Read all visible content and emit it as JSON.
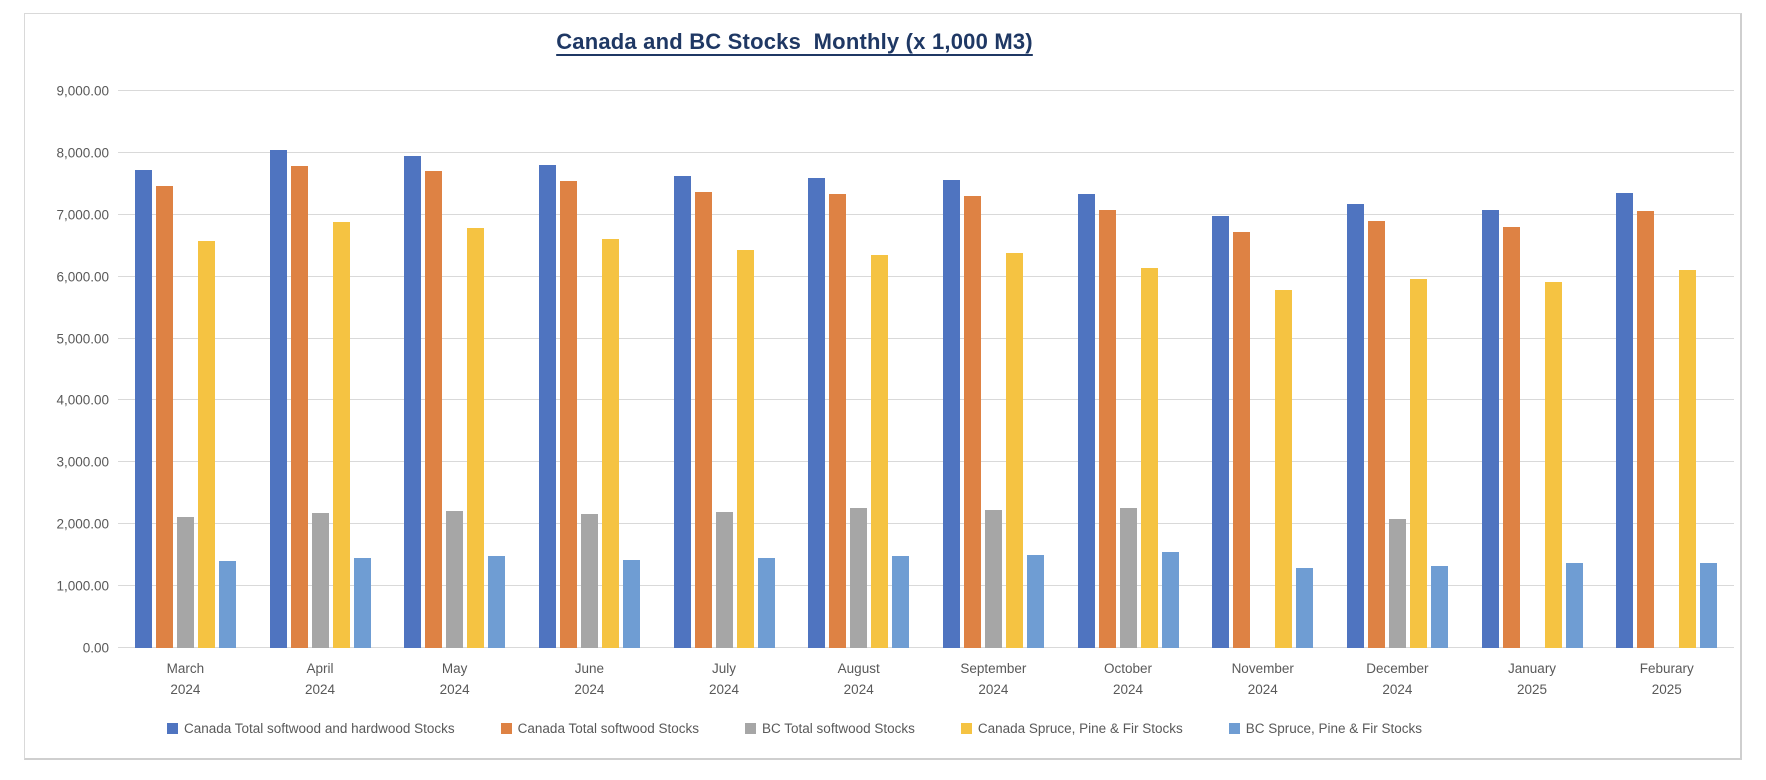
{
  "chart_data": {
    "type": "bar",
    "title": "Canada and BC Stocks  Monthly (x 1,000 M3)",
    "xlabel": "",
    "ylabel": "",
    "ylim": [
      0,
      9000
    ],
    "grid": true,
    "legend_position": "bottom",
    "y_axis": {
      "min": 0,
      "max": 9000,
      "step": 1000,
      "tick_labels": [
        "0.00",
        "1,000.00",
        "2,000.00",
        "3,000.00",
        "4,000.00",
        "5,000.00",
        "6,000.00",
        "7,000.00",
        "8,000.00",
        "9,000.00"
      ]
    },
    "categories": [
      {
        "month": "March",
        "year": "2024"
      },
      {
        "month": "April",
        "year": "2024"
      },
      {
        "month": "May",
        "year": "2024"
      },
      {
        "month": "June",
        "year": "2024"
      },
      {
        "month": "July",
        "year": "2024"
      },
      {
        "month": "August",
        "year": "2024"
      },
      {
        "month": "September",
        "year": "2024"
      },
      {
        "month": "October",
        "year": "2024"
      },
      {
        "month": "November",
        "year": "2024"
      },
      {
        "month": "December",
        "year": "2024"
      },
      {
        "month": "January",
        "year": "2025"
      },
      {
        "month": "Feburary",
        "year": "2025"
      }
    ],
    "series": [
      {
        "key": "canada-total-softwood-and-hardwood",
        "name": "Canada Total softwood and hardwood Stocks",
        "color": "#4F74C0",
        "values": [
          7720,
          8040,
          7950,
          7810,
          7620,
          7590,
          7560,
          7330,
          6980,
          7180,
          7080,
          7350
        ]
      },
      {
        "key": "canada-total-softwood",
        "name": "Canada Total softwood Stocks",
        "color": "#DE8244",
        "values": [
          7460,
          7790,
          7700,
          7540,
          7370,
          7340,
          7300,
          7080,
          6720,
          6900,
          6800,
          7060
        ]
      },
      {
        "key": "bc-total-softwood",
        "name": "BC Total softwood Stocks",
        "color": "#A6A6A6",
        "values": [
          2110,
          2180,
          2220,
          2160,
          2190,
          2260,
          2230,
          2260,
          null,
          2080,
          null,
          null
        ]
      },
      {
        "key": "canada-spruce-pine-fir",
        "name": "Canada Spruce, Pine & Fir Stocks",
        "color": "#F5C342",
        "values": [
          6570,
          6890,
          6780,
          6610,
          6430,
          6350,
          6380,
          6140,
          5790,
          5960,
          5910,
          6110
        ]
      },
      {
        "key": "bc-spruce-pine-fir",
        "name": "BC Spruce, Pine & Fir Stocks",
        "color": "#6F9DD3",
        "values": [
          1410,
          1450,
          1490,
          1420,
          1460,
          1490,
          1510,
          1550,
          1300,
          1330,
          1380,
          1370
        ]
      }
    ]
  },
  "styles": {
    "title_color": "#1F3864",
    "axis_text_color": "#595959",
    "gridline_color": "#D9D9D9",
    "frame_border_color": "#D9D9D9"
  }
}
